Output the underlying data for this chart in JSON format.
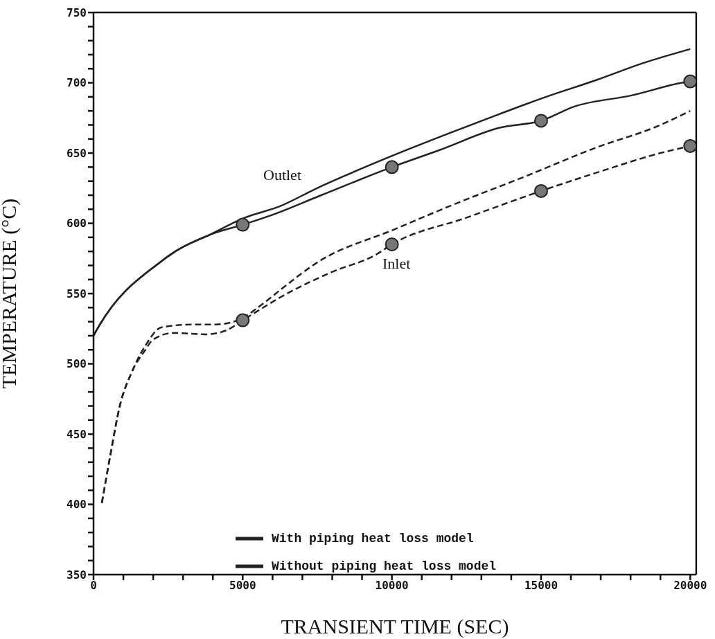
{
  "chart_data": {
    "type": "line",
    "xlabel": "TRANSIENT TIME (SEC)",
    "ylabel": "TEMPERATURE (°C)",
    "xlim": [
      0,
      20200
    ],
    "ylim": [
      350,
      750
    ],
    "xticks": [
      0,
      {
        "value": 1000,
        "label": null
      },
      {
        "value": 2000,
        "label": null
      },
      {
        "value": 3000,
        "label": null
      },
      {
        "value": 4000,
        "label": null
      },
      5000,
      {
        "value": 6000,
        "label": null
      },
      {
        "value": 7000,
        "label": null
      },
      {
        "value": 8000,
        "label": null
      },
      {
        "value": 9000,
        "label": null
      },
      10000,
      {
        "value": 11000,
        "label": null
      },
      {
        "value": 12000,
        "label": null
      },
      {
        "value": 13000,
        "label": null
      },
      {
        "value": 14000,
        "label": null
      },
      15000,
      {
        "value": 16000,
        "label": null
      },
      {
        "value": 17000,
        "label": null
      },
      {
        "value": 18000,
        "label": null
      },
      {
        "value": 19000,
        "label": null
      },
      20000
    ],
    "yticks": [
      350,
      {
        "value": 360,
        "label": null
      },
      {
        "value": 370,
        "label": null
      },
      {
        "value": 380,
        "label": null
      },
      {
        "value": 390,
        "label": null
      },
      400,
      {
        "value": 410,
        "label": null
      },
      {
        "value": 420,
        "label": null
      },
      {
        "value": 430,
        "label": null
      },
      {
        "value": 440,
        "label": null
      },
      450,
      {
        "value": 460,
        "label": null
      },
      {
        "value": 470,
        "label": null
      },
      {
        "value": 480,
        "label": null
      },
      {
        "value": 490,
        "label": null
      },
      500,
      {
        "value": 510,
        "label": null
      },
      {
        "value": 520,
        "label": null
      },
      {
        "value": 530,
        "label": null
      },
      {
        "value": 540,
        "label": null
      },
      550,
      {
        "value": 560,
        "label": null
      },
      {
        "value": 570,
        "label": null
      },
      {
        "value": 580,
        "label": null
      },
      {
        "value": 590,
        "label": null
      },
      600,
      {
        "value": 610,
        "label": null
      },
      {
        "value": 620,
        "label": null
      },
      {
        "value": 630,
        "label": null
      },
      {
        "value": 640,
        "label": null
      },
      650,
      {
        "value": 660,
        "label": null
      },
      {
        "value": 670,
        "label": null
      },
      {
        "value": 680,
        "label": null
      },
      {
        "value": 690,
        "label": null
      },
      700,
      {
        "value": 710,
        "label": null
      },
      {
        "value": 720,
        "label": null
      },
      {
        "value": 730,
        "label": null
      },
      {
        "value": 740,
        "label": null
      },
      750
    ],
    "grid": false,
    "legend": "bottom right",
    "series": [
      {
        "name": "With piping heat loss model",
        "color": "#222222",
        "line_style": "solid",
        "x": [
          0,
          186,
          2210,
          2740,
          3910,
          5000,
          5860,
          7630,
          10000,
          11580,
          13610,
          15000,
          16100,
          18030,
          19720,
          20000
        ],
        "values": [
          520,
          527,
          572,
          580,
          592,
          599,
          605,
          620,
          640,
          652,
          668,
          673,
          683,
          691,
          700,
          701
        ]
      },
      {
        "name": "Without piping heat loss model",
        "color": "#222222",
        "line_style": "solid",
        "x": [
          0,
          186,
          2210,
          2740,
          3910,
          5070,
          6230,
          7490,
          9890,
          11910,
          13140,
          15170,
          16860,
          18420,
          20000
        ],
        "values": [
          520,
          527,
          572,
          580,
          592,
          604,
          612,
          625,
          647,
          664,
          674,
          690,
          702,
          714,
          724
        ]
      },
      {
        "color": "#222222",
        "line_style": "dashed",
        "x": [
          280,
          580,
          880,
          1280,
          1740,
          1980,
          2670,
          3770,
          4470,
          5000,
          6400,
          7950,
          9490,
          10000,
          12500,
          15000,
          17000,
          19000,
          20000
        ],
        "values": [
          401,
          437,
          470,
          494,
          510,
          517,
          522,
          521,
          524,
          531,
          549,
          565,
          578,
          585,
          604,
          623,
          637,
          650,
          655
        ]
      },
      {
        "color": "#222222",
        "line_style": "dashed",
        "x": [
          280,
          580,
          880,
          1280,
          1740,
          2280,
          3300,
          4070,
          4840,
          5630,
          6400,
          7490,
          10120,
          11910,
          14540,
          16860,
          18890,
          20000
        ],
        "values": [
          401,
          437,
          470,
          494,
          513,
          526,
          528,
          528,
          531,
          542,
          555,
          572,
          596,
          612,
          634,
          654,
          669,
          680
        ]
      },
      {
        "type": "scatter",
        "color": "#777777",
        "marker": "circle",
        "x": [
          5000,
          10000,
          15000,
          20000
        ],
        "values": [
          599,
          640,
          673,
          701
        ]
      },
      {
        "type": "scatter",
        "color": "#777777",
        "marker": "circle",
        "x": [
          5000,
          10000,
          15000,
          20000
        ],
        "values": [
          531,
          585,
          623,
          655
        ]
      }
    ],
    "annotations": [
      "Outlet",
      "Inlet"
    ]
  }
}
